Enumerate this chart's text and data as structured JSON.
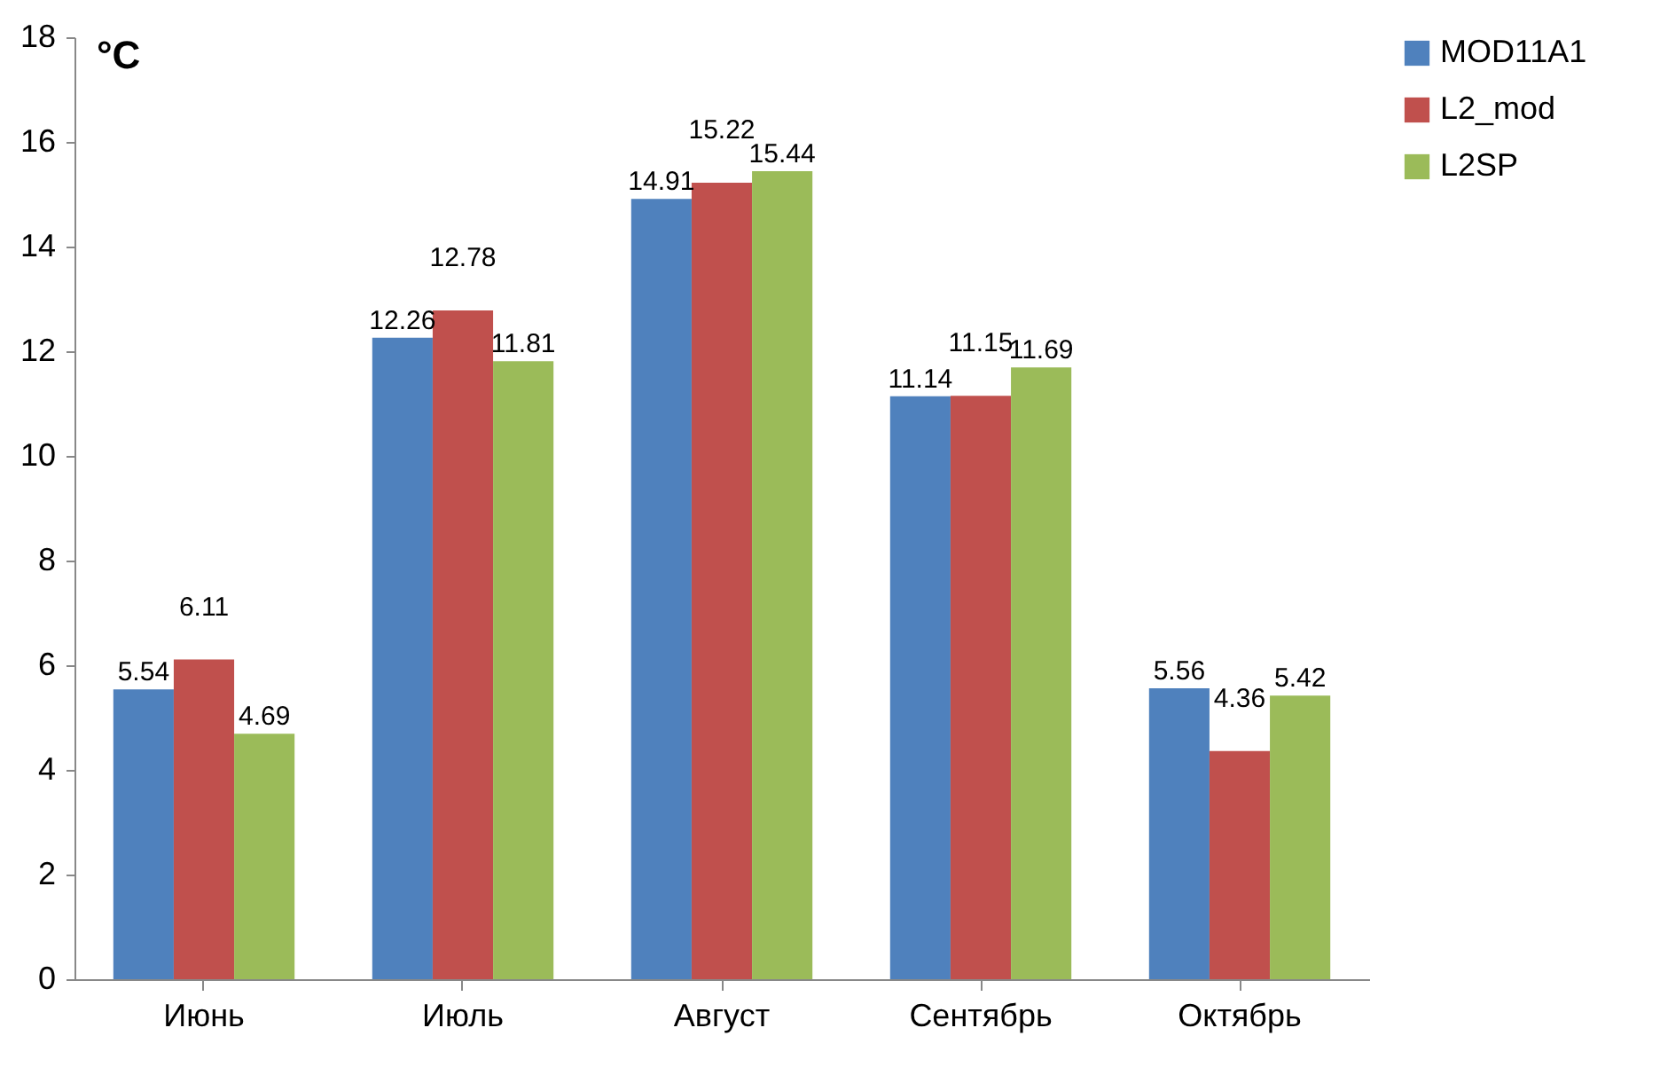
{
  "chart_data": {
    "type": "bar",
    "ylabel": "°C",
    "categories": [
      "Июнь",
      "Июль",
      "Август",
      "Сентябрь",
      "Октябрь"
    ],
    "series": [
      {
        "name": "MOD11A1",
        "color": "#4f81bd",
        "values": [
          5.54,
          12.26,
          14.91,
          11.14,
          5.56
        ]
      },
      {
        "name": "L2_mod",
        "color": "#c0504d",
        "values": [
          6.11,
          12.78,
          15.22,
          11.15,
          4.36
        ]
      },
      {
        "name": "L2SP",
        "color": "#9bbb59",
        "values": [
          4.69,
          11.81,
          15.44,
          11.69,
          5.42
        ]
      }
    ],
    "ylim": [
      0,
      18
    ],
    "yticks": [
      0,
      2,
      4,
      6,
      8,
      10,
      12,
      14,
      16,
      18
    ],
    "grid": false,
    "legend": "right",
    "data_labels": true
  }
}
